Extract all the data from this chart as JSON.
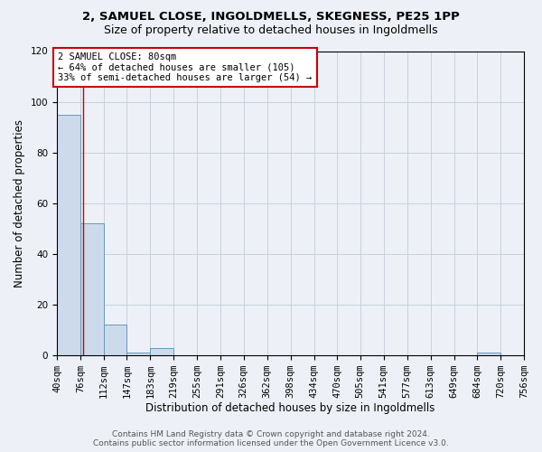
{
  "title1": "2, SAMUEL CLOSE, INGOLDMELLS, SKEGNESS, PE25 1PP",
  "title2": "Size of property relative to detached houses in Ingoldmells",
  "xlabel": "Distribution of detached houses by size in Ingoldmells",
  "ylabel": "Number of detached properties",
  "bin_edges": [
    40,
    76,
    112,
    147,
    183,
    219,
    255,
    291,
    326,
    362,
    398,
    434,
    470,
    505,
    541,
    577,
    613,
    649,
    684,
    720,
    756
  ],
  "bar_heights": [
    95,
    52,
    12,
    1,
    3,
    0,
    0,
    0,
    0,
    0,
    0,
    0,
    0,
    0,
    0,
    0,
    0,
    0,
    1,
    0
  ],
  "bar_color": "#cddaeb",
  "bar_edge_color": "#6699bb",
  "grid_color": "#c8d0dc",
  "background_color": "#edf1f7",
  "vline_x": 80,
  "vline_color": "#cc0000",
  "annotation_text": "2 SAMUEL CLOSE: 80sqm\n← 64% of detached houses are smaller (105)\n33% of semi-detached houses are larger (54) →",
  "annotation_box_facecolor": "#ffffff",
  "annotation_box_edgecolor": "#cc0000",
  "ylim": [
    0,
    120
  ],
  "yticks": [
    0,
    20,
    40,
    60,
    80,
    100,
    120
  ],
  "footer1": "Contains HM Land Registry data © Crown copyright and database right 2024.",
  "footer2": "Contains public sector information licensed under the Open Government Licence v3.0.",
  "title1_fontsize": 9.5,
  "title2_fontsize": 9,
  "xlabel_fontsize": 8.5,
  "ylabel_fontsize": 8.5,
  "tick_fontsize": 7.5,
  "annotation_fontsize": 7.5,
  "footer_fontsize": 6.5
}
